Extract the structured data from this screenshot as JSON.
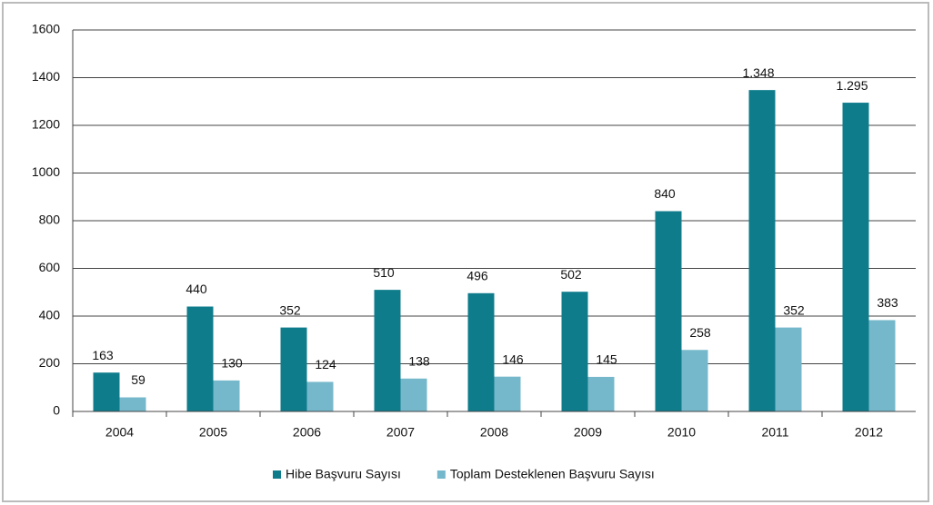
{
  "chart_data": {
    "type": "bar",
    "categories": [
      "2004",
      "2005",
      "2006",
      "2007",
      "2008",
      "2009",
      "2010",
      "2011",
      "2012"
    ],
    "series": [
      {
        "name": "Hibe Başvuru Sayısı",
        "color": "#0f7c8c",
        "values": [
          163,
          440,
          352,
          510,
          496,
          502,
          840,
          1348,
          1295
        ],
        "value_labels": [
          "163",
          "440",
          "352",
          "510",
          "496",
          "502",
          "840",
          "1.348",
          "1.295"
        ]
      },
      {
        "name": "Toplam Desteklenen Başvuru Sayısı",
        "color": "#76b8cb",
        "values": [
          59,
          130,
          124,
          138,
          146,
          145,
          258,
          352,
          383
        ]
      }
    ],
    "ylim": [
      0,
      1600
    ],
    "yticks": [
      0,
      200,
      400,
      600,
      800,
      1000,
      1200,
      1400,
      1600
    ],
    "grid": true,
    "legend": "bottom"
  }
}
